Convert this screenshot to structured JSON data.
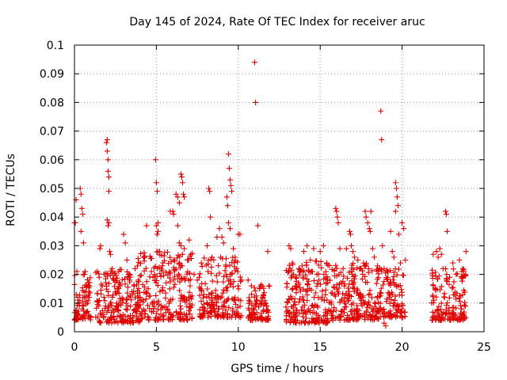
{
  "chart_data": {
    "type": "scatter",
    "title": "Day 145 of 2024, Rate Of TEC Index for receiver aruc",
    "xlabel": "GPS time / hours",
    "ylabel": "ROTI / TECUs",
    "xlim": [
      0,
      25
    ],
    "ylim": [
      0,
      0.1
    ],
    "xticks": [
      "0",
      "5",
      "10",
      "15",
      "20",
      "25"
    ],
    "yticks": [
      "0",
      "0.01",
      "0.02",
      "0.03",
      "0.04",
      "0.05",
      "0.06",
      "0.07",
      "0.08",
      "0.09",
      "0.1"
    ],
    "grid": true,
    "marker": "plus",
    "color": "#e00000",
    "points": [
      [
        0.0,
        0.038
      ],
      [
        0.05,
        0.038
      ],
      [
        0.1,
        0.046
      ],
      [
        0.15,
        0.021
      ],
      [
        0.2,
        0.012
      ],
      [
        0.3,
        0.009
      ],
      [
        0.35,
        0.05
      ],
      [
        0.4,
        0.048
      ],
      [
        0.45,
        0.043
      ],
      [
        0.5,
        0.041
      ],
      [
        0.55,
        0.031
      ],
      [
        0.4,
        0.035
      ],
      [
        0.6,
        0.02
      ],
      [
        0.65,
        0.021
      ],
      [
        0.7,
        0.014
      ],
      [
        0.8,
        0.01
      ],
      [
        0.9,
        0.012
      ],
      [
        0.25,
        0.006
      ],
      [
        0.75,
        0.016
      ],
      [
        0.85,
        0.005
      ],
      [
        1.55,
        0.029
      ],
      [
        1.6,
        0.03
      ],
      [
        1.7,
        0.016
      ],
      [
        1.8,
        0.012
      ],
      [
        1.9,
        0.009
      ],
      [
        1.95,
        0.066
      ],
      [
        2.0,
        0.067
      ],
      [
        2.0,
        0.063
      ],
      [
        2.05,
        0.06
      ],
      [
        2.05,
        0.056
      ],
      [
        2.1,
        0.054
      ],
      [
        2.1,
        0.049
      ],
      [
        2.0,
        0.039
      ],
      [
        2.05,
        0.037
      ],
      [
        2.1,
        0.038
      ],
      [
        2.15,
        0.028
      ],
      [
        2.2,
        0.027
      ],
      [
        2.3,
        0.022
      ],
      [
        2.4,
        0.018
      ],
      [
        2.5,
        0.014
      ],
      [
        2.6,
        0.009
      ],
      [
        2.7,
        0.021
      ],
      [
        2.8,
        0.016
      ],
      [
        3.0,
        0.034
      ],
      [
        3.1,
        0.031
      ],
      [
        3.2,
        0.025
      ],
      [
        3.3,
        0.02
      ],
      [
        3.4,
        0.019
      ],
      [
        3.5,
        0.014
      ],
      [
        3.7,
        0.022
      ],
      [
        3.9,
        0.018
      ],
      [
        4.0,
        0.012
      ],
      [
        4.2,
        0.011
      ],
      [
        4.4,
        0.037
      ],
      [
        4.5,
        0.015
      ],
      [
        4.7,
        0.021
      ],
      [
        4.8,
        0.019
      ],
      [
        4.95,
        0.06
      ],
      [
        5.0,
        0.052
      ],
      [
        5.05,
        0.049
      ],
      [
        5.1,
        0.038
      ],
      [
        5.0,
        0.037
      ],
      [
        5.1,
        0.035
      ],
      [
        5.05,
        0.034
      ],
      [
        5.2,
        0.028
      ],
      [
        5.4,
        0.024
      ],
      [
        5.6,
        0.017
      ],
      [
        5.85,
        0.042
      ],
      [
        6.0,
        0.042
      ],
      [
        6.05,
        0.041
      ],
      [
        6.2,
        0.048
      ],
      [
        6.3,
        0.047
      ],
      [
        6.4,
        0.045
      ],
      [
        6.5,
        0.055
      ],
      [
        6.55,
        0.054
      ],
      [
        6.6,
        0.052
      ],
      [
        6.65,
        0.048
      ],
      [
        6.7,
        0.047
      ],
      [
        6.3,
        0.037
      ],
      [
        6.4,
        0.031
      ],
      [
        6.5,
        0.03
      ],
      [
        6.7,
        0.029
      ],
      [
        6.9,
        0.025
      ],
      [
        7.0,
        0.032
      ],
      [
        7.1,
        0.027
      ],
      [
        7.3,
        0.02
      ],
      [
        7.5,
        0.018
      ],
      [
        7.7,
        0.015
      ],
      [
        7.9,
        0.013
      ],
      [
        8.1,
        0.03
      ],
      [
        8.2,
        0.05
      ],
      [
        8.25,
        0.049
      ],
      [
        8.3,
        0.04
      ],
      [
        8.5,
        0.025
      ],
      [
        8.7,
        0.033
      ],
      [
        8.85,
        0.036
      ],
      [
        9.0,
        0.033
      ],
      [
        9.1,
        0.031
      ],
      [
        9.3,
        0.047
      ],
      [
        9.35,
        0.044
      ],
      [
        9.4,
        0.062
      ],
      [
        9.45,
        0.057
      ],
      [
        9.5,
        0.053
      ],
      [
        9.55,
        0.051
      ],
      [
        9.6,
        0.049
      ],
      [
        9.4,
        0.038
      ],
      [
        9.5,
        0.036
      ],
      [
        9.7,
        0.029
      ],
      [
        9.8,
        0.026
      ],
      [
        9.9,
        0.022
      ],
      [
        10.0,
        0.034
      ],
      [
        10.1,
        0.034
      ],
      [
        10.2,
        0.018
      ],
      [
        10.6,
        0.018
      ],
      [
        10.8,
        0.016
      ],
      [
        11.0,
        0.094
      ],
      [
        11.05,
        0.08
      ],
      [
        11.2,
        0.037
      ],
      [
        11.3,
        0.015
      ],
      [
        11.5,
        0.012
      ],
      [
        11.8,
        0.028
      ],
      [
        11.9,
        0.016
      ],
      [
        13.1,
        0.03
      ],
      [
        13.2,
        0.029
      ],
      [
        13.3,
        0.024
      ],
      [
        13.5,
        0.019
      ],
      [
        13.7,
        0.022
      ],
      [
        13.9,
        0.023
      ],
      [
        14.0,
        0.028
      ],
      [
        14.2,
        0.03
      ],
      [
        14.4,
        0.025
      ],
      [
        14.6,
        0.029
      ],
      [
        14.8,
        0.02
      ],
      [
        15.0,
        0.028
      ],
      [
        15.2,
        0.03
      ],
      [
        15.4,
        0.024
      ],
      [
        15.95,
        0.043
      ],
      [
        16.0,
        0.042
      ],
      [
        16.05,
        0.04
      ],
      [
        16.1,
        0.038
      ],
      [
        16.2,
        0.029
      ],
      [
        16.4,
        0.022
      ],
      [
        16.6,
        0.029
      ],
      [
        16.8,
        0.035
      ],
      [
        16.85,
        0.034
      ],
      [
        16.9,
        0.03
      ],
      [
        17.0,
        0.028
      ],
      [
        17.1,
        0.026
      ],
      [
        17.3,
        0.025
      ],
      [
        17.5,
        0.022
      ],
      [
        17.6,
        0.02
      ],
      [
        17.75,
        0.042
      ],
      [
        17.8,
        0.04
      ],
      [
        17.9,
        0.038
      ],
      [
        18.0,
        0.036
      ],
      [
        18.05,
        0.035
      ],
      [
        18.1,
        0.042
      ],
      [
        18.2,
        0.029
      ],
      [
        18.3,
        0.026
      ],
      [
        18.5,
        0.023
      ],
      [
        18.7,
        0.077
      ],
      [
        18.75,
        0.067
      ],
      [
        18.8,
        0.03
      ],
      [
        18.9,
        0.022
      ],
      [
        18.9,
        0.003
      ],
      [
        19.0,
        0.002
      ],
      [
        19.1,
        0.021
      ],
      [
        19.3,
        0.035
      ],
      [
        19.4,
        0.028
      ],
      [
        19.5,
        0.026
      ],
      [
        19.6,
        0.052
      ],
      [
        19.65,
        0.05
      ],
      [
        19.7,
        0.047
      ],
      [
        19.75,
        0.044
      ],
      [
        19.6,
        0.042
      ],
      [
        19.8,
        0.034
      ],
      [
        19.9,
        0.024
      ],
      [
        20.0,
        0.038
      ],
      [
        20.1,
        0.036
      ],
      [
        20.2,
        0.025
      ],
      [
        21.9,
        0.027
      ],
      [
        22.1,
        0.028
      ],
      [
        22.2,
        0.026
      ],
      [
        22.3,
        0.029
      ],
      [
        22.4,
        0.027
      ],
      [
        22.5,
        0.022
      ],
      [
        22.65,
        0.042
      ],
      [
        22.7,
        0.041
      ],
      [
        22.75,
        0.035
      ],
      [
        22.9,
        0.019
      ],
      [
        23.1,
        0.024
      ],
      [
        23.3,
        0.02
      ],
      [
        23.5,
        0.025
      ],
      [
        23.7,
        0.022
      ],
      [
        23.9,
        0.028
      ]
    ],
    "bands": [
      {
        "from": 0.0,
        "to": 1.0,
        "ymin": 0.004,
        "ymax": 0.02,
        "count": 70
      },
      {
        "from": 1.3,
        "to": 4.0,
        "ymin": 0.003,
        "ymax": 0.022,
        "count": 190
      },
      {
        "from": 3.8,
        "to": 7.2,
        "ymin": 0.004,
        "ymax": 0.028,
        "count": 240
      },
      {
        "from": 7.6,
        "to": 10.2,
        "ymin": 0.005,
        "ymax": 0.026,
        "count": 180
      },
      {
        "from": 10.6,
        "to": 11.9,
        "ymin": 0.004,
        "ymax": 0.017,
        "count": 90
      },
      {
        "from": 12.9,
        "to": 15.5,
        "ymin": 0.003,
        "ymax": 0.025,
        "count": 200
      },
      {
        "from": 15.3,
        "to": 18.7,
        "ymin": 0.004,
        "ymax": 0.024,
        "count": 240
      },
      {
        "from": 18.6,
        "to": 20.2,
        "ymin": 0.005,
        "ymax": 0.022,
        "count": 100
      },
      {
        "from": 21.8,
        "to": 23.9,
        "ymin": 0.004,
        "ymax": 0.022,
        "count": 150
      }
    ]
  }
}
